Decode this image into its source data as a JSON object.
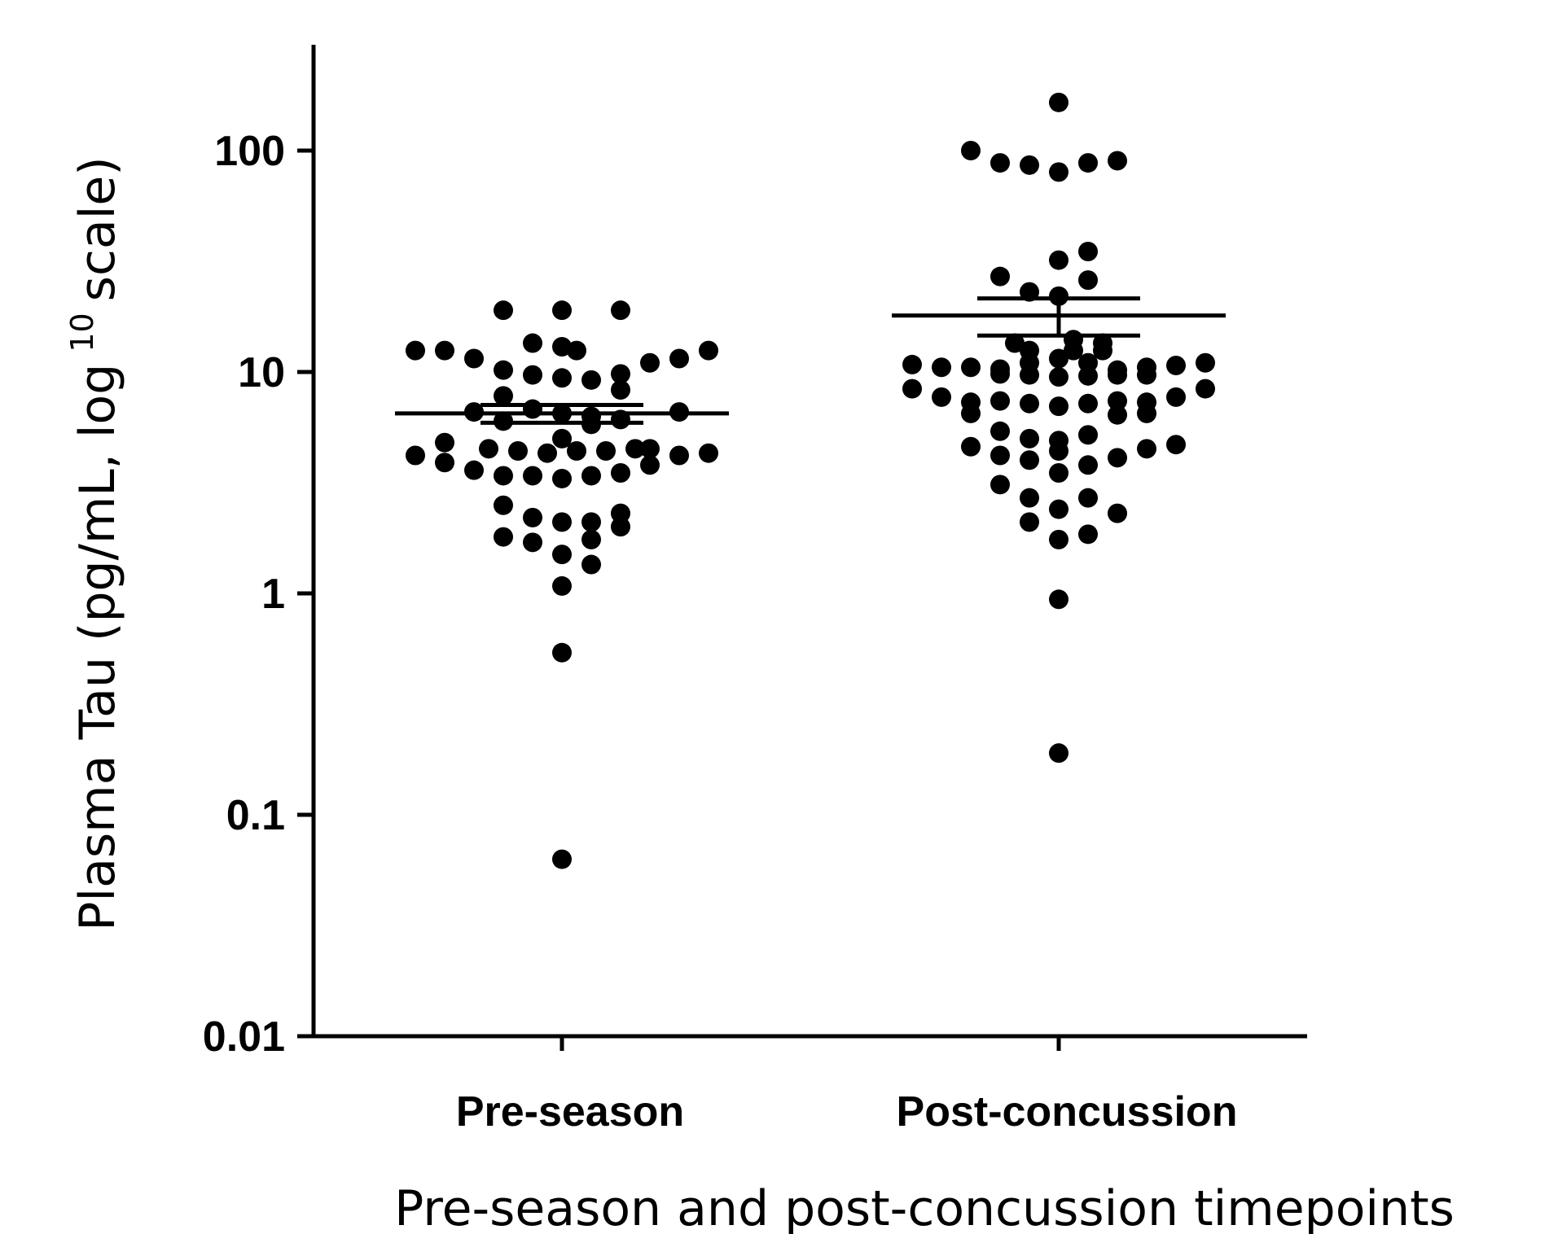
{
  "chart_data": {
    "type": "scatter",
    "title": "",
    "xlabel": "Pre-season and post-concussion timepoints",
    "ylabel": {
      "main": "Plasma Tau (pg/mL, log",
      "superscript": "10",
      "end": "scale)"
    },
    "yscale": "log",
    "ylim": [
      0.01,
      300
    ],
    "yticks": [
      "100",
      "10",
      "1",
      "0.1",
      "0.01"
    ],
    "categories": [
      "Pre-season",
      "Post-concussion"
    ],
    "grid": false,
    "legend": "none",
    "marker_color": "#000000",
    "series": [
      {
        "category": "Pre-season",
        "points": [
          {
            "j": -2,
            "v": 19
          },
          {
            "j": 0,
            "v": 19
          },
          {
            "j": 2,
            "v": 19
          },
          {
            "j": -1,
            "v": 13.5
          },
          {
            "j": 0,
            "v": 13
          },
          {
            "j": 0.5,
            "v": 12.5
          },
          {
            "j": -5,
            "v": 12.5
          },
          {
            "j": -4,
            "v": 12.5
          },
          {
            "j": -3,
            "v": 11.5
          },
          {
            "j": 3,
            "v": 11
          },
          {
            "j": 4,
            "v": 11.5
          },
          {
            "j": 5,
            "v": 12.5
          },
          {
            "j": -2,
            "v": 10.2
          },
          {
            "j": -1,
            "v": 9.7
          },
          {
            "j": 0,
            "v": 9.4
          },
          {
            "j": 1,
            "v": 9.2
          },
          {
            "j": 2,
            "v": 9.8
          },
          {
            "j": -2,
            "v": 7.8
          },
          {
            "j": 2,
            "v": 8.3
          },
          {
            "j": -3,
            "v": 6.6
          },
          {
            "j": -1,
            "v": 6.8
          },
          {
            "j": 0,
            "v": 6.5
          },
          {
            "j": 1,
            "v": 6.3
          },
          {
            "j": 2,
            "v": 6.1
          },
          {
            "j": 4,
            "v": 6.6
          },
          {
            "j": -2,
            "v": 6.0
          },
          {
            "j": 1,
            "v": 5.8
          },
          {
            "j": 0,
            "v": 5.0
          },
          {
            "j": -4,
            "v": 4.8
          },
          {
            "j": 3,
            "v": 4.5
          },
          {
            "j": -2.5,
            "v": 4.5
          },
          {
            "j": -1.5,
            "v": 4.4
          },
          {
            "j": -0.5,
            "v": 4.3
          },
          {
            "j": 0.5,
            "v": 4.4
          },
          {
            "j": 1.5,
            "v": 4.4
          },
          {
            "j": 2.5,
            "v": 4.5
          },
          {
            "j": -5,
            "v": 4.2
          },
          {
            "j": -4,
            "v": 3.9
          },
          {
            "j": 3,
            "v": 3.8
          },
          {
            "j": 4,
            "v": 4.2
          },
          {
            "j": 5,
            "v": 4.3
          },
          {
            "j": -3,
            "v": 3.6
          },
          {
            "j": -2,
            "v": 3.4
          },
          {
            "j": -1,
            "v": 3.4
          },
          {
            "j": 0,
            "v": 3.3
          },
          {
            "j": 1,
            "v": 3.4
          },
          {
            "j": 2,
            "v": 3.5
          },
          {
            "j": -2,
            "v": 2.5
          },
          {
            "j": -1,
            "v": 2.2
          },
          {
            "j": 0,
            "v": 2.1
          },
          {
            "j": 1,
            "v": 2.1
          },
          {
            "j": 2,
            "v": 2.3
          },
          {
            "j": 2,
            "v": 2.0
          },
          {
            "j": -2,
            "v": 1.8
          },
          {
            "j": -1,
            "v": 1.7
          },
          {
            "j": 0,
            "v": 1.5
          },
          {
            "j": 1,
            "v": 1.75
          },
          {
            "j": 1,
            "v": 1.35
          },
          {
            "j": 0,
            "v": 1.08
          },
          {
            "j": 0,
            "v": 0.54
          },
          {
            "j": 0,
            "v": 0.063
          }
        ],
        "mean": 6.5,
        "sem_low": 5.9,
        "sem_high": 7.1
      },
      {
        "category": "Post-concussion",
        "points": [
          {
            "j": 0,
            "v": 165
          },
          {
            "j": -3,
            "v": 100
          },
          {
            "j": -2,
            "v": 88
          },
          {
            "j": -1,
            "v": 86
          },
          {
            "j": 0,
            "v": 80
          },
          {
            "j": 1,
            "v": 88
          },
          {
            "j": 2,
            "v": 90
          },
          {
            "j": 1,
            "v": 35
          },
          {
            "j": 0,
            "v": 32
          },
          {
            "j": -2,
            "v": 27
          },
          {
            "j": 1,
            "v": 26
          },
          {
            "j": -1,
            "v": 23
          },
          {
            "j": 0,
            "v": 22
          },
          {
            "j": 0.5,
            "v": 14
          },
          {
            "j": -1.5,
            "v": 13.5
          },
          {
            "j": 1.5,
            "v": 13.5
          },
          {
            "j": -1,
            "v": 12.5
          },
          {
            "j": 0.5,
            "v": 12.5
          },
          {
            "j": 1.5,
            "v": 12.5
          },
          {
            "j": 0,
            "v": 11.5
          },
          {
            "j": -1,
            "v": 11
          },
          {
            "j": 1,
            "v": 11
          },
          {
            "j": -5,
            "v": 10.8
          },
          {
            "j": -4,
            "v": 10.5
          },
          {
            "j": -3,
            "v": 10.5
          },
          {
            "j": -2,
            "v": 10.3
          },
          {
            "j": 3,
            "v": 10.5
          },
          {
            "j": 4,
            "v": 10.7
          },
          {
            "j": 5,
            "v": 11
          },
          {
            "j": 2,
            "v": 10.2
          },
          {
            "j": -2,
            "v": 9.8
          },
          {
            "j": -1,
            "v": 9.7
          },
          {
            "j": 0,
            "v": 9.5
          },
          {
            "j": 1,
            "v": 9.6
          },
          {
            "j": 2,
            "v": 9.7
          },
          {
            "j": 3,
            "v": 9.7
          },
          {
            "j": -5,
            "v": 8.4
          },
          {
            "j": -4,
            "v": 7.7
          },
          {
            "j": -3,
            "v": 7.3
          },
          {
            "j": -2,
            "v": 7.4
          },
          {
            "j": -1,
            "v": 7.2
          },
          {
            "j": 0,
            "v": 7.0
          },
          {
            "j": 1,
            "v": 7.2
          },
          {
            "j": 2,
            "v": 7.4
          },
          {
            "j": 3,
            "v": 7.3
          },
          {
            "j": 4,
            "v": 7.7
          },
          {
            "j": 5,
            "v": 8.4
          },
          {
            "j": -3,
            "v": 6.5
          },
          {
            "j": 2,
            "v": 6.4
          },
          {
            "j": 3,
            "v": 6.5
          },
          {
            "j": -2,
            "v": 5.4
          },
          {
            "j": -1,
            "v": 5.0
          },
          {
            "j": 0,
            "v": 4.9
          },
          {
            "j": 1,
            "v": 5.2
          },
          {
            "j": -3,
            "v": 4.6
          },
          {
            "j": -2,
            "v": 4.2
          },
          {
            "j": -1,
            "v": 4.0
          },
          {
            "j": 0,
            "v": 4.4
          },
          {
            "j": 1,
            "v": 3.8
          },
          {
            "j": 2,
            "v": 4.1
          },
          {
            "j": 3,
            "v": 4.5
          },
          {
            "j": 4,
            "v": 4.7
          },
          {
            "j": 0,
            "v": 3.5
          },
          {
            "j": -2,
            "v": 3.1
          },
          {
            "j": -1,
            "v": 2.7
          },
          {
            "j": 1,
            "v": 2.7
          },
          {
            "j": 0,
            "v": 2.4
          },
          {
            "j": 2,
            "v": 2.3
          },
          {
            "j": -1,
            "v": 2.1
          },
          {
            "j": 1,
            "v": 1.85
          },
          {
            "j": 0,
            "v": 1.75
          },
          {
            "j": 0,
            "v": 0.94
          },
          {
            "j": 0,
            "v": 0.19
          }
        ],
        "mean": 18,
        "sem_low": 14.6,
        "sem_high": 21.5
      }
    ]
  }
}
